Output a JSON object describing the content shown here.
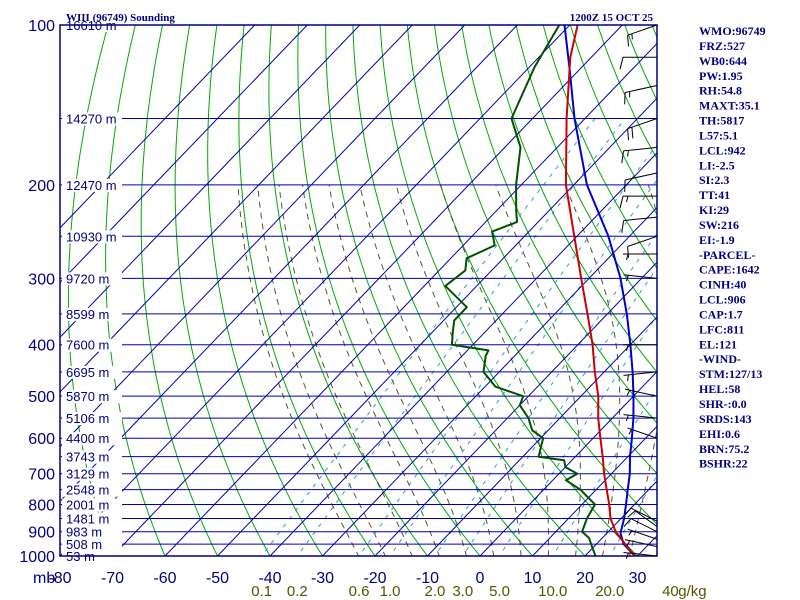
{
  "chart_data": {
    "type": "skew-t",
    "title": "WIII (96749) Sounding",
    "valid_time": "1200Z 15 OCT 25",
    "pressure_unit_label": "mb",
    "pressure_levels": [
      100,
      200,
      300,
      400,
      500,
      600,
      700,
      800,
      900,
      1000
    ],
    "pressure_range": [
      100,
      1000
    ],
    "temperature_ticks": [
      -80,
      -70,
      -60,
      -50,
      -40,
      -30,
      -20,
      -10,
      0,
      10,
      20,
      30
    ],
    "temperature_range": [
      -80,
      30
    ],
    "height_labels": [
      {
        "p": 100,
        "text": "16610 m"
      },
      {
        "p": 150,
        "text": "14270 m"
      },
      {
        "p": 200,
        "text": "12470 m"
      },
      {
        "p": 250,
        "text": "10930 m"
      },
      {
        "p": 300,
        "text": "9720 m"
      },
      {
        "p": 350,
        "text": "8599 m"
      },
      {
        "p": 400,
        "text": "7600 m"
      },
      {
        "p": 450,
        "text": "6695 m"
      },
      {
        "p": 500,
        "text": "5870 m"
      },
      {
        "p": 550,
        "text": "5106 m"
      },
      {
        "p": 600,
        "text": "4400 m"
      },
      {
        "p": 650,
        "text": "3743 m"
      },
      {
        "p": 700,
        "text": "3129 m"
      },
      {
        "p": 750,
        "text": "2548 m"
      },
      {
        "p": 800,
        "text": "2001 m"
      },
      {
        "p": 850,
        "text": "1481 m"
      },
      {
        "p": 900,
        "text": "983 m"
      },
      {
        "p": 950,
        "text": "508 m"
      },
      {
        "p": 1000,
        "text": "53 m"
      }
    ],
    "mixing_ratio_labels": [
      "0.1",
      "0.2",
      "0.6",
      "1.0",
      "2.0",
      "3.0",
      "5.0",
      "10.0",
      "20.0",
      "40",
      "g/kg"
    ],
    "mixing_ratio_values": [
      0.1,
      0.2,
      0.6,
      1.0,
      2.0,
      3.0,
      5.0,
      10.0,
      20.0,
      40
    ],
    "series": [
      {
        "name": "Temperature",
        "color": "#cc0000",
        "points": [
          [
            1000,
            29.5
          ],
          [
            950,
            25.5
          ],
          [
            925,
            23.5
          ],
          [
            900,
            21.4
          ],
          [
            850,
            18.0
          ],
          [
            800,
            15.2
          ],
          [
            750,
            12.0
          ],
          [
            700,
            8.6
          ],
          [
            650,
            5.2
          ],
          [
            600,
            1.4
          ],
          [
            550,
            -2.7
          ],
          [
            500,
            -6.7
          ],
          [
            450,
            -11.8
          ],
          [
            400,
            -17.2
          ],
          [
            350,
            -23.8
          ],
          [
            300,
            -31.5
          ],
          [
            250,
            -40.5
          ],
          [
            200,
            -51.5
          ],
          [
            150,
            -63.5
          ],
          [
            115,
            -74.0
          ],
          [
            100,
            -78.5
          ]
        ]
      },
      {
        "name": "Dewpoint",
        "color": "#005000",
        "points": [
          [
            1000,
            22.0
          ],
          [
            950,
            19.0
          ],
          [
            925,
            17.5
          ],
          [
            900,
            15.0
          ],
          [
            850,
            13.5
          ],
          [
            800,
            12.5
          ],
          [
            750,
            7.0
          ],
          [
            720,
            2.5
          ],
          [
            700,
            3.5
          ],
          [
            680,
            0.0
          ],
          [
            660,
            -1.5
          ],
          [
            650,
            -7.0
          ],
          [
            620,
            -8.5
          ],
          [
            600,
            -9.5
          ],
          [
            580,
            -13.0
          ],
          [
            550,
            -16.0
          ],
          [
            520,
            -20.0
          ],
          [
            500,
            -21.0
          ],
          [
            480,
            -28.0
          ],
          [
            450,
            -33.0
          ],
          [
            420,
            -35.5
          ],
          [
            410,
            -36.0
          ],
          [
            400,
            -44.0
          ],
          [
            380,
            -46.0
          ],
          [
            360,
            -48.0
          ],
          [
            340,
            -48.0
          ],
          [
            310,
            -56.0
          ],
          [
            290,
            -55.0
          ],
          [
            275,
            -57.0
          ],
          [
            260,
            -54.0
          ],
          [
            245,
            -57.0
          ],
          [
            235,
            -54.0
          ],
          [
            225,
            -56.0
          ],
          [
            200,
            -61.0
          ],
          [
            170,
            -67.0
          ],
          [
            150,
            -74.0
          ],
          [
            120,
            -79.0
          ],
          [
            100,
            -82.0
          ]
        ]
      },
      {
        "name": "Parcel",
        "color": "#0000cc",
        "points": [
          [
            1000,
            29.5
          ],
          [
            950,
            25.2
          ],
          [
            906,
            22.6
          ],
          [
            850,
            20.6
          ],
          [
            800,
            18.4
          ],
          [
            750,
            16.0
          ],
          [
            700,
            13.5
          ],
          [
            650,
            10.4
          ],
          [
            600,
            7.4
          ],
          [
            550,
            4.0
          ],
          [
            500,
            0.0
          ],
          [
            450,
            -4.6
          ],
          [
            400,
            -10.0
          ],
          [
            350,
            -16.3
          ],
          [
            300,
            -24.0
          ],
          [
            250,
            -34.0
          ],
          [
            200,
            -47.5
          ],
          [
            150,
            -62.0
          ],
          [
            121,
            -72.0
          ],
          [
            100,
            -81.0
          ]
        ]
      }
    ],
    "wind_barbs": [
      {
        "p": 100,
        "dir": 60,
        "speed": 15
      },
      {
        "p": 115,
        "dir": 90,
        "speed": 10
      },
      {
        "p": 130,
        "dir": 70,
        "speed": 15
      },
      {
        "p": 150,
        "dir": 60,
        "speed": 20
      },
      {
        "p": 170,
        "dir": 80,
        "speed": 15
      },
      {
        "p": 190,
        "dir": 70,
        "speed": 10
      },
      {
        "p": 210,
        "dir": 90,
        "speed": 15
      },
      {
        "p": 230,
        "dir": 80,
        "speed": 10
      },
      {
        "p": 250,
        "dir": 60,
        "speed": 10
      },
      {
        "p": 270,
        "dir": 90,
        "speed": 5
      },
      {
        "p": 300,
        "dir": 100,
        "speed": 5
      },
      {
        "p": 400,
        "dir": 90,
        "speed": 5
      },
      {
        "p": 450,
        "dir": 80,
        "speed": 5
      },
      {
        "p": 500,
        "dir": 110,
        "speed": 5
      },
      {
        "p": 550,
        "dir": 100,
        "speed": 5
      },
      {
        "p": 600,
        "dir": 120,
        "speed": 5
      },
      {
        "p": 860,
        "dir": 130,
        "speed": 10
      },
      {
        "p": 880,
        "dir": 140,
        "speed": 10
      },
      {
        "p": 900,
        "dir": 130,
        "speed": 10
      },
      {
        "p": 930,
        "dir": 120,
        "speed": 5
      },
      {
        "p": 960,
        "dir": 110,
        "speed": 5
      },
      {
        "p": 1000,
        "dir": 100,
        "speed": 5
      }
    ],
    "indices": [
      "WMO:96749",
      "FRZ:527",
      "WB0:644",
      "PW:1.95",
      "RH:54.8",
      "MAXT:35.1",
      "TH:5817",
      "L57:5.1",
      "LCL:942",
      "LI:-2.5",
      "SI:2.3",
      "TT:41",
      "KI:29",
      "SW:216",
      "EI:-1.9",
      "-PARCEL-",
      "CAPE:1642",
      "CINH:40",
      "LCL:906",
      "CAP:1.7",
      "LFC:811",
      "EL:121",
      "-WIND-",
      "STM:127/13",
      "HEL:58",
      "SHR-:0.0",
      "SRDS:143",
      "EHI:0.6",
      "BRN:75.2",
      "BSHR:22"
    ],
    "colors": {
      "isobars": "#0000aa",
      "isotherms": "#0000aa",
      "dry_adiabats": "#00aa00",
      "moist_adiabats": "#555533",
      "mixing_ratio": "#3399cc",
      "temperature": "#cc0000",
      "dewpoint": "#005000",
      "parcel": "#0000cc",
      "labels_dark": "#000080",
      "mixing_labels": "#555500",
      "barbs": "#000000"
    }
  }
}
